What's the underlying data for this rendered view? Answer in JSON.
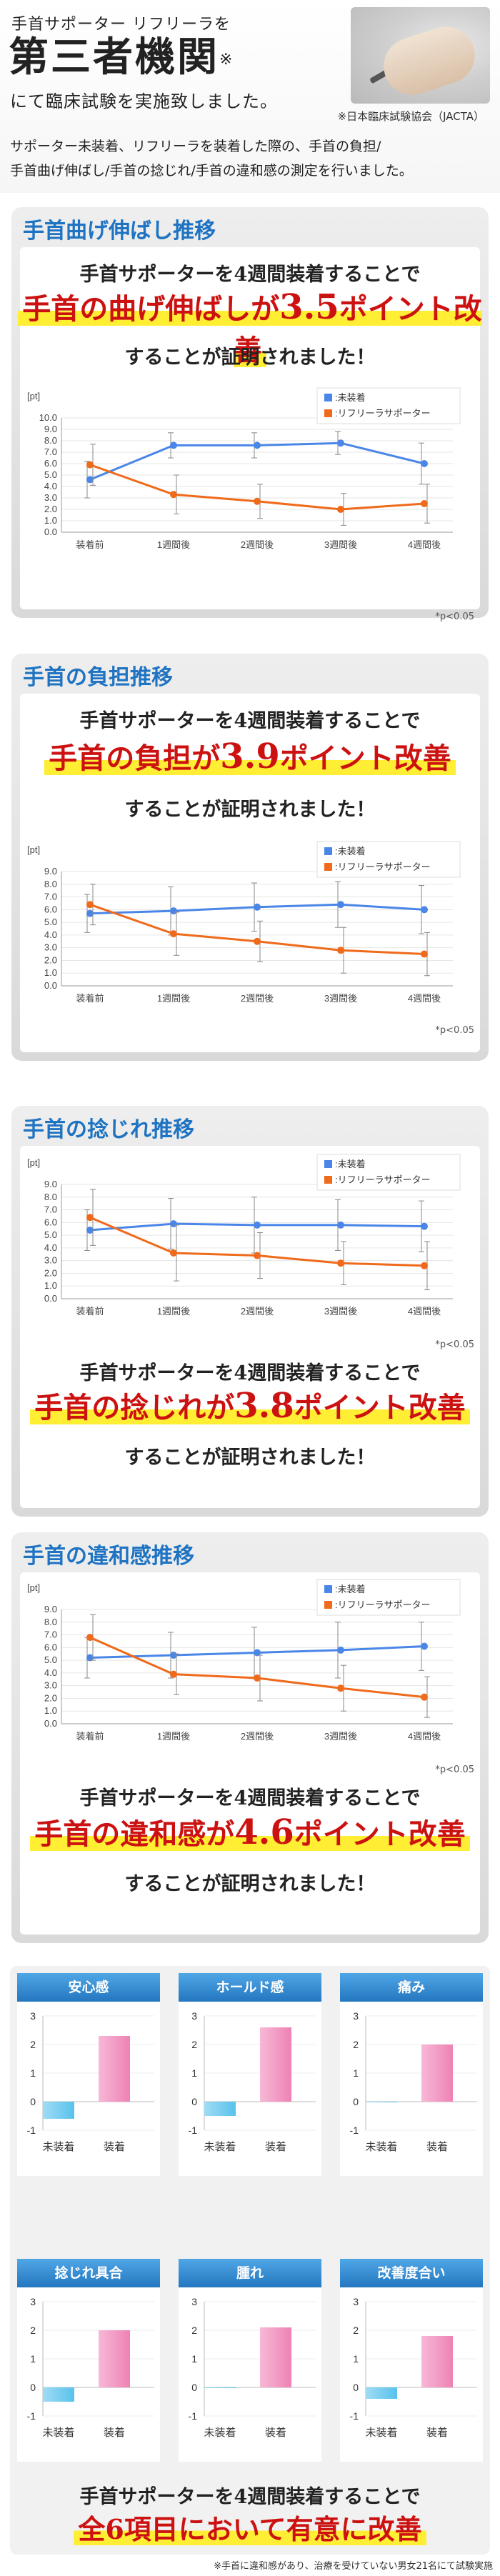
{
  "header": {
    "top_small": "手首サポーター リフリーラを",
    "top_big": "第三者機関",
    "top_big_mark": "※",
    "top_line2": "にて臨床試験を実施致しました。",
    "jacta": "※日本臨床試験協会（JACTA）",
    "intro_line1": "サポーター未装着、リフリーラを装着した際の、手首の負担/",
    "intro_line2": "手首曲げ伸ばし/手首の捻じれ/手首の違和感の測定を行いました。"
  },
  "sections": [
    {
      "title": "手首曲げ伸ばし推移",
      "phrase1": "手首サポーターを4週間装着することで",
      "phrase2_pre": "手首の曲げ伸ばしが",
      "phrase2_num": "3.5",
      "phrase2_post": "ポイント改善",
      "phrase3": "することが証明されました！",
      "pnote": "*p<0.05"
    },
    {
      "title": "手首の負担推移",
      "phrase1": "手首サポーターを4週間装着することで",
      "phrase2_pre": "手首の負担が",
      "phrase2_num": "3.9",
      "phrase2_post": "ポイント改善",
      "phrase3": "することが証明されました！",
      "pnote": "*p<0.05"
    },
    {
      "title": "手首の捻じれ推移",
      "phrase1": "手首サポーターを4週間装着することで",
      "phrase2_pre": "手首の捻じれが",
      "phrase2_num": "3.8",
      "phrase2_post": "ポイント改善",
      "phrase3": "することが証明されました！",
      "pnote": "*p<0.05"
    },
    {
      "title": "手首の違和感推移",
      "phrase1": "手首サポーターを4週間装着することで",
      "phrase2_pre": "手首の違和感が",
      "phrase2_num": "4.6",
      "phrase2_post": "ポイント改善",
      "phrase3": "することが証明されました！",
      "pnote": "*p<0.05"
    }
  ],
  "summary": {
    "line1": "手首サポーターを4週間装着することで",
    "line2": "全6項目において有意に改善",
    "footnote": "※手首に違和感があり、治療を受けていない男女21名にて試験実施"
  },
  "colors": {
    "blue": "#4a86e8",
    "orange": "#ef6a1a",
    "pink": "#ee82b4",
    "cyan": "#58c2ec",
    "title_blue": "#1e73c2",
    "red": "#cc1111"
  },
  "chart_data": [
    {
      "type": "line",
      "ylabel": "[pt]",
      "categories": [
        "装着前",
        "1週間後",
        "2週間後",
        "3週間後",
        "4週間後"
      ],
      "ylim": [
        0,
        10
      ],
      "yticks": [
        0.0,
        1.0,
        2.0,
        3.0,
        4.0,
        5.0,
        6.0,
        7.0,
        8.0,
        9.0,
        10.0
      ],
      "legend_position": "top-right",
      "series": [
        {
          "name": ":未装着",
          "color": "#4a86e8",
          "values": [
            4.6,
            7.6,
            7.6,
            7.8,
            6.0
          ],
          "err": [
            1.6,
            1.1,
            1.1,
            1.0,
            1.8
          ]
        },
        {
          "name": ":リフリーラサポーター",
          "color": "#ef6a1a",
          "values": [
            5.9,
            3.3,
            2.7,
            2.0,
            2.5
          ],
          "err": [
            1.8,
            1.7,
            1.5,
            1.4,
            1.7
          ]
        }
      ]
    },
    {
      "type": "line",
      "ylabel": "[pt]",
      "categories": [
        "装着前",
        "1週間後",
        "2週間後",
        "3週間後",
        "4週間後"
      ],
      "ylim": [
        0,
        9
      ],
      "yticks": [
        0.0,
        1.0,
        2.0,
        3.0,
        4.0,
        5.0,
        6.0,
        7.0,
        8.0,
        9.0
      ],
      "legend_position": "top-right",
      "series": [
        {
          "name": ":未装着",
          "color": "#4a86e8",
          "values": [
            5.7,
            5.9,
            6.2,
            6.4,
            6.0
          ],
          "err": [
            1.5,
            1.9,
            1.9,
            1.8,
            1.9
          ]
        },
        {
          "name": ":リフリーラサポーター",
          "color": "#ef6a1a",
          "values": [
            6.4,
            4.1,
            3.5,
            2.8,
            2.5
          ],
          "err": [
            1.6,
            1.7,
            1.6,
            1.8,
            1.7
          ]
        }
      ]
    },
    {
      "type": "line",
      "ylabel": "[pt]",
      "categories": [
        "装着前",
        "1週間後",
        "2週間後",
        "3週間後",
        "4週間後"
      ],
      "ylim": [
        0,
        9
      ],
      "yticks": [
        0.0,
        1.0,
        2.0,
        3.0,
        4.0,
        5.0,
        6.0,
        7.0,
        8.0,
        9.0
      ],
      "legend_position": "top-right",
      "series": [
        {
          "name": ":未装着",
          "color": "#4a86e8",
          "values": [
            5.4,
            5.9,
            5.8,
            5.8,
            5.7
          ],
          "err": [
            1.6,
            2.0,
            2.2,
            2.0,
            2.0
          ]
        },
        {
          "name": ":リフリーラサポーター",
          "color": "#ef6a1a",
          "values": [
            6.4,
            3.6,
            3.4,
            2.8,
            2.6
          ],
          "err": [
            2.2,
            2.2,
            1.8,
            1.7,
            1.9
          ]
        }
      ]
    },
    {
      "type": "line",
      "ylabel": "[pt]",
      "categories": [
        "装着前",
        "1週間後",
        "2週間後",
        "3週間後",
        "4週間後"
      ],
      "ylim": [
        0,
        9
      ],
      "yticks": [
        0.0,
        1.0,
        2.0,
        3.0,
        4.0,
        5.0,
        6.0,
        7.0,
        8.0,
        9.0
      ],
      "legend_position": "top-right",
      "series": [
        {
          "name": ":未装着",
          "color": "#4a86e8",
          "values": [
            5.2,
            5.4,
            5.6,
            5.8,
            6.1
          ],
          "err": [
            1.6,
            1.8,
            2.0,
            2.2,
            1.9
          ]
        },
        {
          "name": ":リフリーラサポーター",
          "color": "#ef6a1a",
          "values": [
            6.8,
            3.9,
            3.6,
            2.8,
            2.1
          ],
          "err": [
            1.8,
            1.6,
            1.8,
            1.8,
            1.6
          ]
        }
      ]
    },
    {
      "type": "bar",
      "panels": [
        {
          "title": "安心感",
          "categories": [
            "未装着",
            "装着"
          ],
          "values": [
            -0.6,
            2.3
          ]
        },
        {
          "title": "ホールド感",
          "categories": [
            "未装着",
            "装着"
          ],
          "values": [
            -0.5,
            2.6
          ]
        },
        {
          "title": "痛み",
          "categories": [
            "未装着",
            "装着"
          ],
          "values": [
            0,
            2.0
          ]
        },
        {
          "title": "捻じれ具合",
          "categories": [
            "未装着",
            "装着"
          ],
          "values": [
            -0.5,
            2.0
          ]
        },
        {
          "title": "腫れ",
          "categories": [
            "未装着",
            "装着"
          ],
          "values": [
            0,
            2.1
          ]
        },
        {
          "title": "改善度合い",
          "categories": [
            "未装着",
            "装着"
          ],
          "values": [
            -0.4,
            1.8
          ]
        }
      ],
      "ylim": [
        -1,
        3
      ],
      "yticks": [
        -1,
        0,
        1,
        2,
        3
      ]
    }
  ]
}
